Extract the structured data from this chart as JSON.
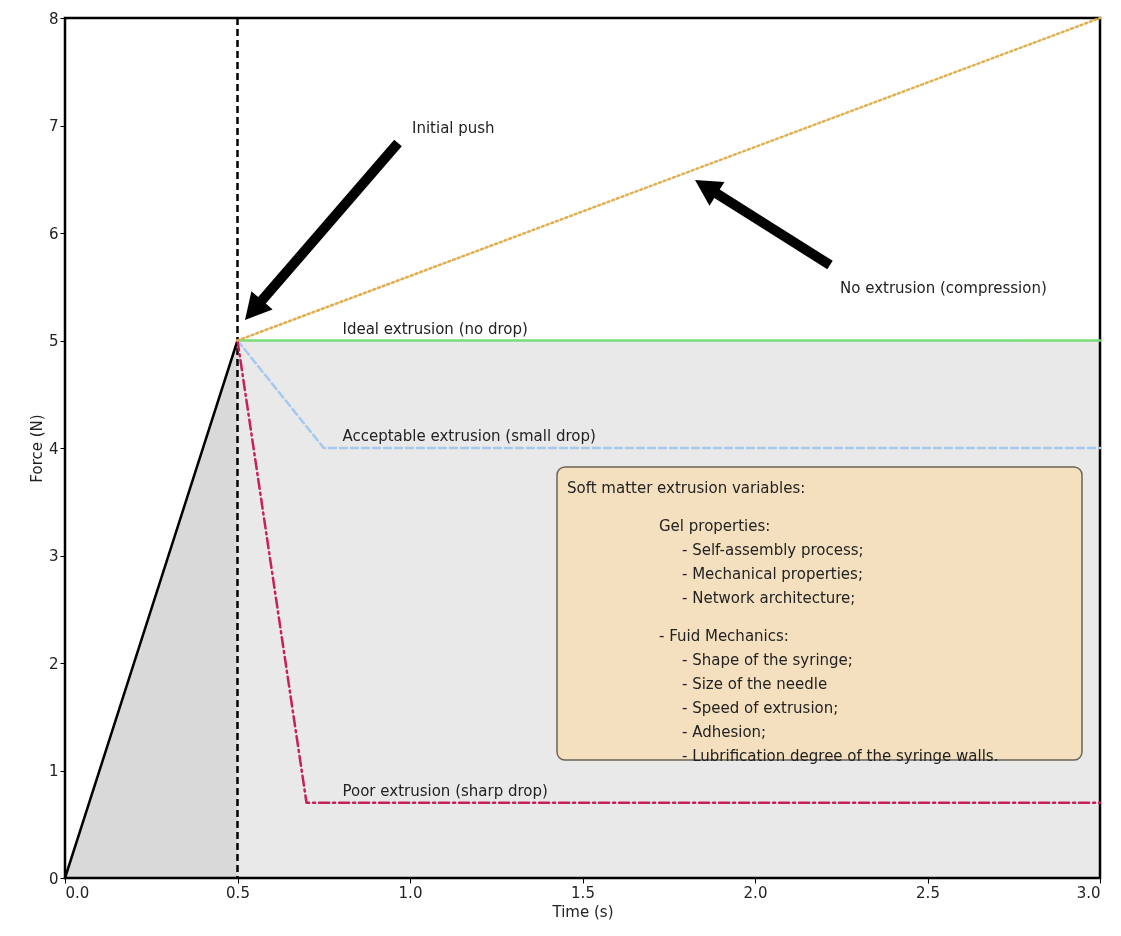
{
  "chart_data": {
    "type": "line",
    "xlabel": "Time (s)",
    "ylabel": "Force (N)",
    "xlim": [
      0,
      3
    ],
    "ylim": [
      0,
      8
    ],
    "xticks": [
      {
        "value": 0,
        "label": "0.0"
      },
      0.5,
      {
        "value": 1,
        "label": "1.0"
      },
      1.5,
      {
        "value": 2,
        "label": "2.0"
      },
      2.5,
      {
        "value": 3,
        "label": "3.0"
      }
    ],
    "yticks": [
      0,
      1,
      2,
      3,
      4,
      5,
      6,
      7,
      8
    ],
    "grid": false,
    "marker": "none",
    "series": [
      {
        "color": "#000000",
        "x": [
          0,
          0.5
        ],
        "values": [
          0,
          5
        ],
        "lower": [
          0,
          0
        ],
        "upper": [
          0,
          5
        ],
        "line_style": "solid"
      },
      {
        "name": "Ideal extrusion (no drop)",
        "color": "#77dd77",
        "x": [
          0.5,
          3
        ],
        "values": [
          5,
          5
        ],
        "lower": [
          0,
          0
        ],
        "upper": [
          5,
          5
        ],
        "line_style": "solid"
      },
      {
        "name": "Acceptable extrusion (small drop)",
        "color": "#a6c8f0",
        "x": [
          0.5,
          0.75,
          3
        ],
        "values": [
          5,
          4,
          4
        ],
        "line_style": "dashed"
      },
      {
        "name": "Poor extrusion (sharp drop)",
        "color": "#c8205a",
        "x": [
          0.5,
          0.7,
          3
        ],
        "values": [
          5,
          0.7,
          0.7
        ],
        "line_style": "dashdot"
      },
      {
        "color": "#e0b050",
        "x": [
          0.5,
          3
        ],
        "values": [
          5,
          8
        ],
        "line_style": "dotted"
      }
    ],
    "ref_lines": [
      {
        "axis": "x",
        "value": 0.5,
        "color": "#000000",
        "line_style": "dashed"
      }
    ],
    "annotations": [
      "Initial push",
      "No extrusion (compression)",
      "Soft matter extrusion variables:\n\n                    Gel properties:\n                         - Self-assembly process;\n                         - Mechanical properties;\n                         - Network architecture;\n\n                    - Fuid Mechanics:\n                         - Shape of the syringe;\n                         - Size of the needle\n                         - Speed of extrusion;\n                         - Adhesion;\n                         - Lubrification degree of the syringe walls."
    ]
  }
}
